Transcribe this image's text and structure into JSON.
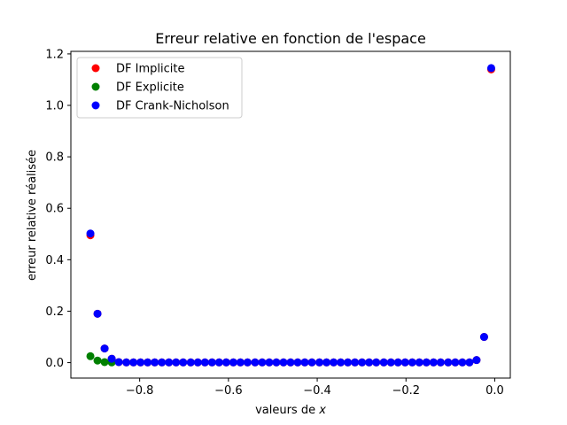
{
  "chart_data": {
    "type": "scatter",
    "title": "Erreur relative en fonction de l'espace",
    "xlabel": "valeurs de x",
    "xlabel_prefix": "valeurs de ",
    "xlabel_var": "x",
    "ylabel": "erreur relative réalisée",
    "xlim": [
      -0.955,
      0.035
    ],
    "ylim": [
      -0.06,
      1.21
    ],
    "xticks": [
      -0.8,
      -0.6,
      -0.4,
      -0.2,
      0.0
    ],
    "xtick_labels": [
      "−0.8",
      "−0.6",
      "−0.4",
      "−0.2",
      "0.0"
    ],
    "yticks": [
      0.0,
      0.2,
      0.4,
      0.6,
      0.8,
      1.0,
      1.2
    ],
    "ytick_labels": [
      "0.0",
      "0.2",
      "0.4",
      "0.6",
      "0.8",
      "1.0",
      "1.2"
    ],
    "grid": false,
    "legend_position": "upper left",
    "series": [
      {
        "name": "DF Implicite",
        "color": "#ff0000",
        "x": [
          -0.911,
          -0.895,
          -0.879,
          -0.863,
          -0.847,
          -0.83,
          -0.814,
          -0.798,
          -0.782,
          -0.766,
          -0.75,
          -0.734,
          -0.718,
          -0.702,
          -0.685,
          -0.669,
          -0.653,
          -0.637,
          -0.621,
          -0.605,
          -0.589,
          -0.573,
          -0.557,
          -0.54,
          -0.524,
          -0.508,
          -0.492,
          -0.476,
          -0.46,
          -0.444,
          -0.428,
          -0.412,
          -0.395,
          -0.379,
          -0.363,
          -0.347,
          -0.331,
          -0.315,
          -0.299,
          -0.283,
          -0.267,
          -0.25,
          -0.234,
          -0.218,
          -0.202,
          -0.186,
          -0.17,
          -0.154,
          -0.138,
          -0.122,
          -0.105,
          -0.089,
          -0.073,
          -0.057,
          -0.041,
          -0.024,
          -0.008
        ],
        "y": [
          0.495,
          0.19,
          0.055,
          0.015,
          0.002,
          0.001,
          0.001,
          0.001,
          0.001,
          0.001,
          0.001,
          0.001,
          0.001,
          0.001,
          0.001,
          0.001,
          0.001,
          0.001,
          0.001,
          0.001,
          0.001,
          0.001,
          0.001,
          0.001,
          0.001,
          0.001,
          0.001,
          0.001,
          0.001,
          0.001,
          0.001,
          0.001,
          0.001,
          0.001,
          0.001,
          0.001,
          0.001,
          0.001,
          0.001,
          0.001,
          0.001,
          0.001,
          0.001,
          0.001,
          0.001,
          0.001,
          0.001,
          0.001,
          0.001,
          0.001,
          0.001,
          0.001,
          0.001,
          0.001,
          0.01,
          0.1,
          1.14
        ]
      },
      {
        "name": "DF Explicite",
        "color": "#008000",
        "x": [
          -0.911,
          -0.895,
          -0.879,
          -0.863
        ],
        "y": [
          0.025,
          0.008,
          0.002,
          0.001
        ]
      },
      {
        "name": "DF Crank-Nicholson",
        "color": "#0000ff",
        "x": [
          -0.911,
          -0.895,
          -0.879,
          -0.863,
          -0.847,
          -0.83,
          -0.814,
          -0.798,
          -0.782,
          -0.766,
          -0.75,
          -0.734,
          -0.718,
          -0.702,
          -0.685,
          -0.669,
          -0.653,
          -0.637,
          -0.621,
          -0.605,
          -0.589,
          -0.573,
          -0.557,
          -0.54,
          -0.524,
          -0.508,
          -0.492,
          -0.476,
          -0.46,
          -0.444,
          -0.428,
          -0.412,
          -0.395,
          -0.379,
          -0.363,
          -0.347,
          -0.331,
          -0.315,
          -0.299,
          -0.283,
          -0.267,
          -0.25,
          -0.234,
          -0.218,
          -0.202,
          -0.186,
          -0.17,
          -0.154,
          -0.138,
          -0.122,
          -0.105,
          -0.089,
          -0.073,
          -0.057,
          -0.041,
          -0.024,
          -0.008
        ],
        "y": [
          0.502,
          0.19,
          0.055,
          0.015,
          0.002,
          0.001,
          0.001,
          0.001,
          0.001,
          0.001,
          0.001,
          0.001,
          0.001,
          0.001,
          0.001,
          0.001,
          0.001,
          0.001,
          0.001,
          0.001,
          0.001,
          0.001,
          0.001,
          0.001,
          0.001,
          0.001,
          0.001,
          0.001,
          0.001,
          0.001,
          0.001,
          0.001,
          0.001,
          0.001,
          0.001,
          0.001,
          0.001,
          0.001,
          0.001,
          0.001,
          0.001,
          0.001,
          0.001,
          0.001,
          0.001,
          0.001,
          0.001,
          0.001,
          0.001,
          0.001,
          0.001,
          0.001,
          0.001,
          0.001,
          0.01,
          0.1,
          1.145
        ]
      }
    ]
  }
}
